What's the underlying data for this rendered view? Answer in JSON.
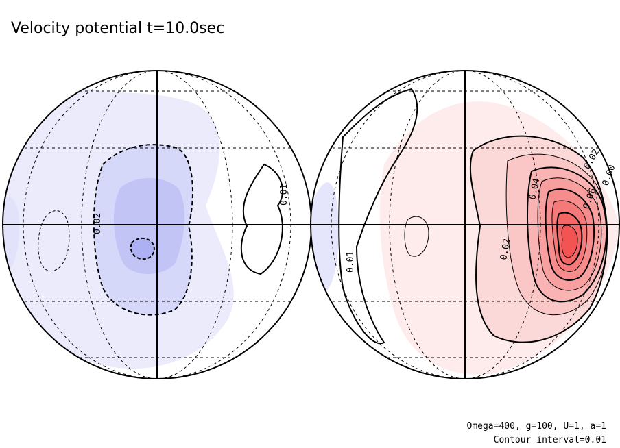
{
  "chart_data": {
    "type": "heatmap",
    "title": "Velocity potential t=10.0sec",
    "projection": "orthographic",
    "contour_interval": 0.01,
    "colors": {
      "negative": "#a9acf2",
      "positive": "#f24a4a",
      "zero": "#ffffff"
    },
    "notes": [
      "Omega=400, g=100, U=1, a=1",
      "Contour interval=0.01"
    ],
    "hemispheres": [
      {
        "name": "",
        "extremum": -0.04,
        "levels": [
          {
            "value": -0.01,
            "label": ""
          },
          {
            "value": -0.02,
            "label": "0.02"
          },
          {
            "value": -0.03,
            "label": ""
          },
          {
            "value": -0.04,
            "label": ""
          }
        ],
        "side_label": "0.01"
      },
      {
        "name": "",
        "extremum": 0.09,
        "levels": [
          {
            "value": 0.01,
            "label": ""
          },
          {
            "value": 0.02,
            "label": "0.02"
          },
          {
            "value": 0.03,
            "label": ""
          },
          {
            "value": 0.04,
            "label": "0.04"
          },
          {
            "value": 0.05,
            "label": ""
          },
          {
            "value": 0.06,
            "label": "0.06"
          },
          {
            "value": 0.07,
            "label": ""
          },
          {
            "value": 0.08,
            "label": ""
          },
          {
            "value": 0.09,
            "label": ""
          }
        ],
        "side_labels": [
          "0.01",
          "0.02",
          "0.00"
        ]
      }
    ]
  }
}
